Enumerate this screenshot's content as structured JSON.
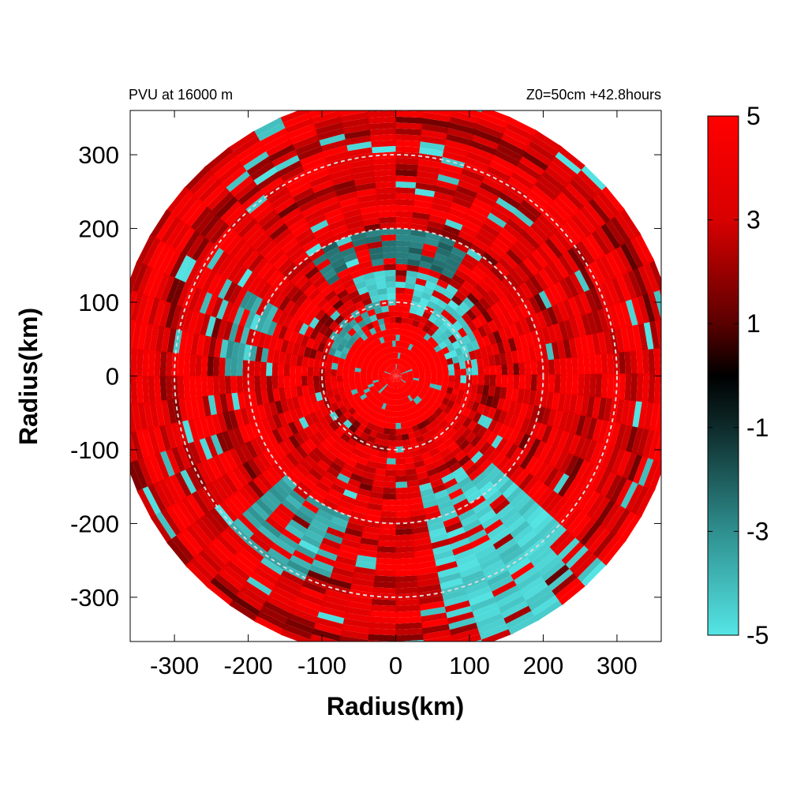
{
  "chart_data": {
    "type": "heatmap",
    "title_left": "PVU at 16000 m",
    "title_right": "Z0=50cm  +42.8hours",
    "xlabel": "Radius(km)",
    "ylabel": "Radius(km)",
    "xlim": [
      -360,
      360
    ],
    "ylim": [
      -360,
      360
    ],
    "x_ticks": [
      -300,
      -200,
      -100,
      0,
      100,
      200,
      300
    ],
    "y_ticks": [
      300,
      200,
      100,
      0,
      -100,
      -200,
      -300
    ],
    "domain_radius_km": 380,
    "reference_circles_km": [
      100,
      200,
      300
    ],
    "colorbar": {
      "min": -5,
      "max": 5,
      "ticks": [
        5,
        3,
        1,
        -1,
        -3,
        -5
      ],
      "colors": {
        "high": "#ff0000",
        "mid": "#000000",
        "low": "#55e5e5"
      }
    },
    "negative_regions": [
      {
        "r": [
          90,
          140
        ],
        "theta": [
          40,
          110
        ],
        "level": -5
      },
      {
        "r": [
          20,
          120
        ],
        "theta": [
          0,
          45
        ],
        "level": -5
      },
      {
        "r": [
          60,
          100
        ],
        "theta": [
          100,
          160
        ],
        "level": -4
      },
      {
        "r": [
          150,
          380
        ],
        "theta": [
          -80,
          -45
        ],
        "level": -5
      },
      {
        "r": [
          200,
          300
        ],
        "theta": [
          -140,
          -110
        ],
        "level": -4
      },
      {
        "r": [
          180,
          230
        ],
        "theta": [
          150,
          175
        ],
        "level": -4
      },
      {
        "r": [
          150,
          200
        ],
        "theta": [
          60,
          120
        ],
        "level": -3
      }
    ]
  }
}
